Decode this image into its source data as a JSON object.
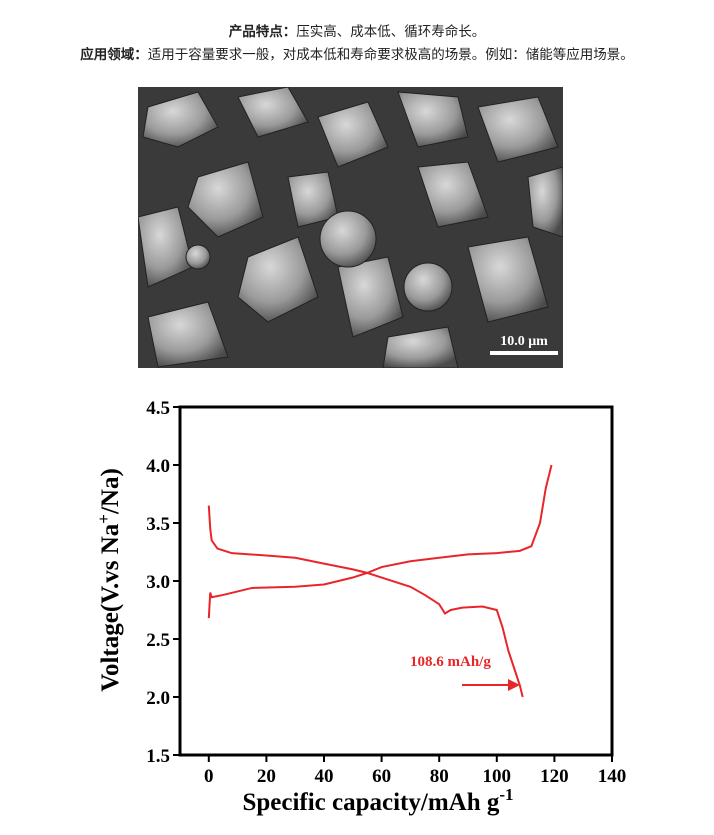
{
  "header": {
    "features_label": "产品特点：",
    "features": "压实高、成本低、循环寿命长。",
    "applications_label": "应用领域：",
    "applications": "适用于容量要求一般，对成本低和寿命要求极高的场景。例如：储能等应用场景。"
  },
  "image": {
    "scale_bar": "10.0 μm"
  },
  "chart_data": {
    "type": "line",
    "ylabel_parts": [
      "Voltage(V.vs Na",
      "+",
      "/Na)"
    ],
    "xlabel_parts": [
      "Specific capacity/mAh g",
      "-1"
    ],
    "annotation": "108.6 mAh/g",
    "xlim": [
      -10,
      140
    ],
    "xticks": [
      0,
      20,
      40,
      60,
      80,
      100,
      120,
      140
    ],
    "ylim": [
      1.5,
      4.5
    ],
    "yticks": [
      1.5,
      {
        "value": 2,
        "label": "2.0"
      },
      2.5,
      {
        "value": 3,
        "label": "3.0"
      },
      3.5,
      {
        "value": 4,
        "label": "4.0"
      },
      4.5
    ],
    "series": [
      {
        "color": "#e8262a",
        "x": [
          0,
          0.5,
          1,
          5,
          15,
          30,
          40,
          50,
          55,
          60,
          70,
          80,
          90,
          100,
          108,
          112,
          115,
          117,
          119
        ],
        "values": [
          2.68,
          2.9,
          2.86,
          2.88,
          2.94,
          2.95,
          2.97,
          3.03,
          3.07,
          3.12,
          3.17,
          3.2,
          3.23,
          3.24,
          3.26,
          3.3,
          3.5,
          3.8,
          4.0
        ]
      },
      {
        "color": "#e8262a",
        "x": [
          0,
          0.5,
          1,
          3,
          8,
          20,
          30,
          40,
          50,
          55,
          60,
          70,
          75,
          80,
          82,
          84,
          88,
          95,
          100,
          102,
          104,
          106,
          108,
          109
        ],
        "values": [
          3.65,
          3.45,
          3.35,
          3.28,
          3.24,
          3.22,
          3.2,
          3.15,
          3.1,
          3.07,
          3.03,
          2.95,
          2.88,
          2.8,
          2.72,
          2.75,
          2.77,
          2.78,
          2.75,
          2.6,
          2.4,
          2.25,
          2.1,
          2.0
        ]
      }
    ]
  }
}
